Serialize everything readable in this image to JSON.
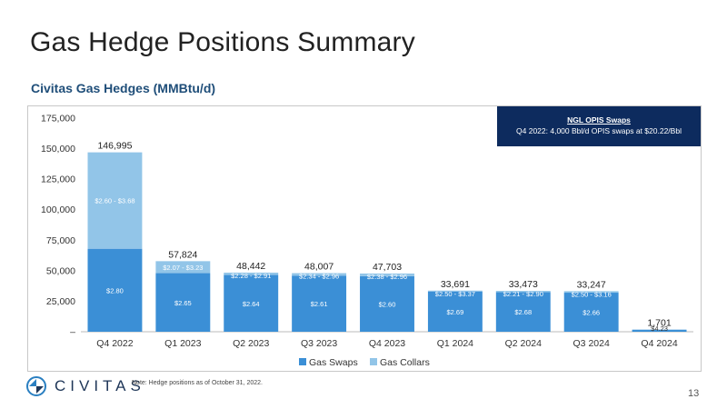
{
  "slide": {
    "title": "Gas Hedge Positions Summary",
    "subtitle": "Civitas Gas Hedges (MMBtu/d)",
    "note_box": {
      "title": "NGL OPIS Swaps",
      "text": "Q4 2022: 4,000 Bbl/d OPIS swaps at $20.22/Bbl"
    },
    "footer_note": "Note: Hedge positions as of October 31, 2022.",
    "page_number": "13",
    "logo_text": "CIVITAS",
    "logo_icon": "civitas-logo-icon"
  },
  "colors": {
    "swaps": "#3b8fd6",
    "collars": "#92c5e8",
    "note_bg": "#0d2b5e",
    "title": "#1f4e79"
  },
  "chart_data": {
    "type": "bar",
    "stacked": true,
    "categories": [
      "Q4 2022",
      "Q1 2023",
      "Q2 2023",
      "Q3 2023",
      "Q4 2023",
      "Q1 2024",
      "Q2 2024",
      "Q3 2024",
      "Q4 2024"
    ],
    "series": [
      {
        "name": "Gas Swaps",
        "values": [
          68000,
          48000,
          46500,
          46000,
          45500,
          33000,
          32500,
          32000,
          1701
        ],
        "labels": [
          "$2.80",
          "$2.65",
          "$2.64",
          "$2.61",
          "$2.60",
          "$2.69",
          "$2.68",
          "$2.66",
          "$4.23"
        ]
      },
      {
        "name": "Gas Collars",
        "values": [
          78995,
          9824,
          1942,
          2007,
          2203,
          691,
          973,
          1247,
          0
        ],
        "labels": [
          "$2.60 - $3.68",
          "$2.07 - $3.23",
          "$2.28 - $2.91",
          "$2.34 - $2.96",
          "$2.38 - $2.96",
          "$2.50 - $3.37",
          "$2.21 - $2.90",
          "$2.50 - $3.16",
          ""
        ]
      }
    ],
    "totals": [
      "146,995",
      "57,824",
      "48,442",
      "48,007",
      "47,703",
      "33,691",
      "33,473",
      "33,247",
      "1,701"
    ],
    "y_ticks": [
      "–",
      "25,000",
      "50,000",
      "75,000",
      "100,000",
      "125,000",
      "150,000",
      "175,000"
    ],
    "ylim": [
      0,
      175000
    ],
    "legend": [
      "Gas Swaps",
      "Gas Collars"
    ],
    "legend_position": "bottom",
    "grid": false
  }
}
